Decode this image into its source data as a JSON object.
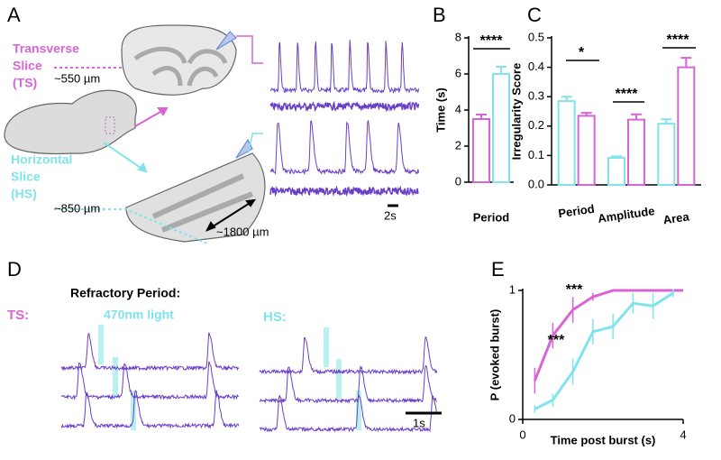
{
  "panel_letters": [
    "A",
    "B",
    "C",
    "D",
    "E"
  ],
  "panel_a": {
    "ts_label": [
      "Transverse",
      "Slice",
      "(TS)"
    ],
    "ts_thickness": "~550 µm",
    "hs_label": [
      "Horizontal",
      "Slice",
      "(HS)"
    ],
    "hs_thickness": "~850 µm",
    "hs_length": "~1800 µm",
    "scale_bar": "2s"
  },
  "panel_d": {
    "title": "Refractory Period:",
    "ts": "TS:",
    "light": "470nm light",
    "hs": "HS:",
    "scale_bar": "1s"
  },
  "chart_data": [
    {
      "type": "bar",
      "ylabel": "Time (s)",
      "categories": [
        "Period"
      ],
      "series": [
        {
          "color": "#d765d3",
          "values": [
            3.5
          ],
          "errors": [
            0.25
          ]
        },
        {
          "color": "#80e4ea",
          "values": [
            6.0
          ],
          "errors": [
            0.4
          ]
        }
      ],
      "ylim": [
        0,
        8
      ],
      "yticks": [
        0,
        2,
        4,
        6,
        8
      ],
      "annotations": [
        "****"
      ]
    },
    {
      "type": "bar",
      "ylabel": "Irregularity Score",
      "categories": [
        "Period",
        "Amplitude",
        "Area"
      ],
      "series": [
        {
          "color": "#80e4ea",
          "values": [
            0.285,
            0.092,
            0.208
          ],
          "errors": [
            0.015,
            0.005,
            0.015
          ]
        },
        {
          "color": "#d765d3",
          "values": [
            0.235,
            0.222,
            0.4
          ],
          "errors": [
            0.01,
            0.018,
            0.032
          ]
        }
      ],
      "ylim": [
        0,
        0.5
      ],
      "yticks": [
        {
          "value": 0,
          "label": "0.0"
        },
        0.1,
        0.2,
        0.3,
        0.4,
        0.5
      ],
      "annotations": [
        "*",
        "****",
        "****"
      ]
    },
    {
      "type": "line",
      "xlabel": "Time post burst (s)",
      "ylabel": "P (evoked burst)",
      "series": [
        {
          "color": "#d765d3",
          "x": [
            0.3,
            0.75,
            1.25,
            1.75,
            2.25,
            2.75,
            3.25,
            3.75,
            4
          ],
          "values": [
            0.3,
            0.65,
            0.85,
            0.95,
            1,
            1,
            1,
            1,
            1
          ],
          "errors": [
            0.1,
            0.1,
            0.1,
            0.03,
            0,
            0,
            0,
            0,
            0
          ]
        },
        {
          "color": "#80e4ea",
          "x": [
            0.3,
            0.75,
            1.25,
            1.75,
            2.25,
            2.75,
            3.25,
            3.75
          ],
          "values": [
            0.08,
            0.15,
            0.37,
            0.68,
            0.72,
            0.9,
            0.88,
            0.98
          ],
          "errors": [
            0.03,
            0.05,
            0.1,
            0.1,
            0.1,
            0.08,
            0.1,
            0.03
          ]
        }
      ],
      "xlim": [
        0,
        4
      ],
      "xticks": [
        0,
        4
      ],
      "ylim": [
        0,
        1
      ],
      "yticks": [
        0,
        1
      ],
      "annotations": [
        "***",
        "***"
      ]
    }
  ]
}
